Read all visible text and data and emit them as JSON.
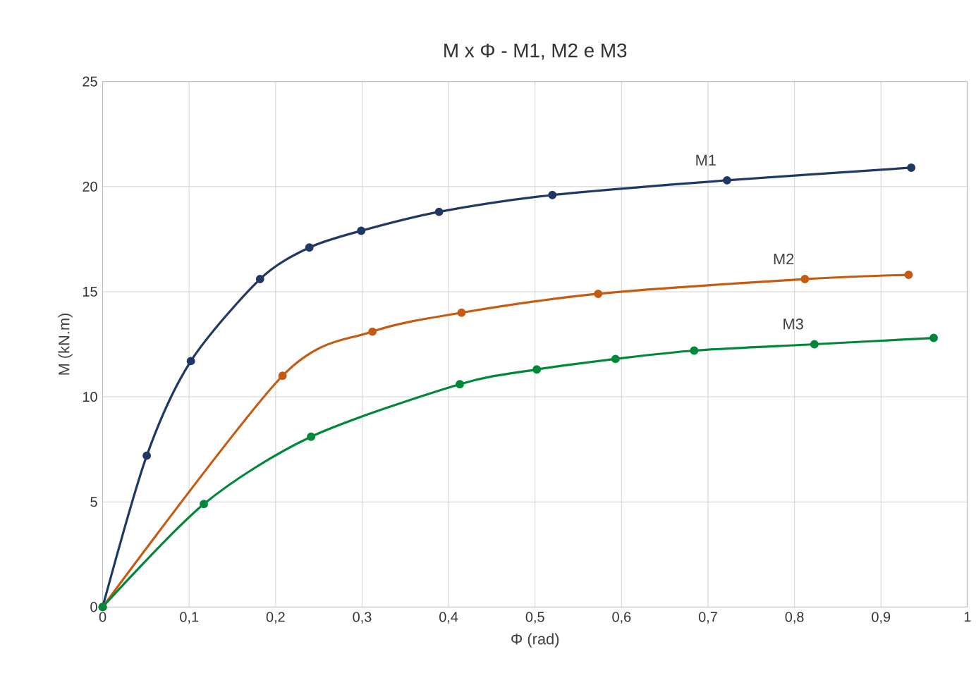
{
  "chart_data": {
    "type": "line",
    "title": "M x Φ - M1, M2 e M3",
    "xlabel": "Φ (rad)",
    "ylabel": "M (kN.m)",
    "xlim": [
      0,
      1
    ],
    "ylim": [
      0,
      25
    ],
    "xticks": [
      0,
      {
        "value": 0.1,
        "label": "0,1"
      },
      {
        "value": 0.2,
        "label": "0,2"
      },
      {
        "value": 0.3,
        "label": "0,3"
      },
      {
        "value": 0.4,
        "label": "0,4"
      },
      {
        "value": 0.5,
        "label": "0,5"
      },
      {
        "value": 0.6,
        "label": "0,6"
      },
      {
        "value": 0.7,
        "label": "0,7"
      },
      {
        "value": 0.8,
        "label": "0,8"
      },
      {
        "value": 0.9,
        "label": "0,9"
      },
      1
    ],
    "yticks": [
      0,
      5,
      10,
      15,
      20,
      25
    ],
    "grid": true,
    "marker": "circle",
    "series": [
      {
        "name": "M1",
        "color": "#1f3864",
        "x": [
          0,
          0.051,
          0.102,
          0.182,
          0.239,
          0.299,
          0.389,
          0.52,
          0.722,
          0.935
        ],
        "values": [
          0,
          7.2,
          11.7,
          15.6,
          17.1,
          17.9,
          18.8,
          19.6,
          20.3,
          20.9
        ]
      },
      {
        "name": "M2",
        "color": "#c55a11",
        "x": [
          0,
          0.208,
          0.312,
          0.415,
          0.573,
          0.812,
          0.932
        ],
        "values": [
          0,
          11.0,
          13.1,
          14.0,
          14.9,
          15.6,
          15.8
        ]
      },
      {
        "name": "M3",
        "color": "#00883a",
        "x": [
          0,
          0.117,
          0.241,
          0.413,
          0.502,
          0.593,
          0.684,
          0.823,
          0.961
        ],
        "values": [
          0,
          4.9,
          8.1,
          10.6,
          11.3,
          11.8,
          12.2,
          12.5,
          12.8
        ]
      }
    ]
  }
}
